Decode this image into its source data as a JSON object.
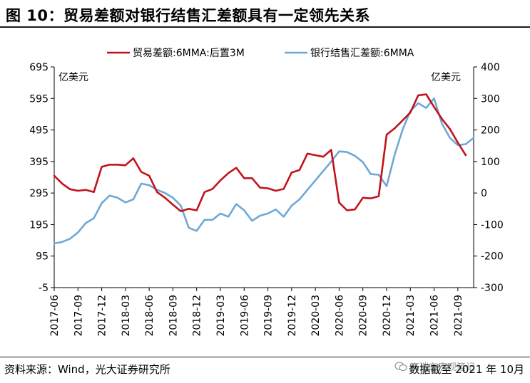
{
  "header": {
    "title": "图 10：贸易差额对银行结售汇差额具有一定领先关系"
  },
  "footer": {
    "source": "资料来源：Wind，光大证券研究所",
    "watermark": "高瑞东宏观笔记",
    "date_note": "数据截至 2021 年 10月"
  },
  "chart_data": {
    "type": "line",
    "left_unit": "亿美元",
    "right_unit": "亿美元",
    "left_axis": {
      "min": -5,
      "max": 695,
      "ticks": [
        -5,
        95,
        195,
        295,
        395,
        495,
        595,
        695
      ]
    },
    "right_axis": {
      "min": -300,
      "max": 400,
      "ticks": [
        -300,
        -200,
        -100,
        0,
        100,
        200,
        300,
        400
      ]
    },
    "x_labels": [
      "2017-06",
      "2017-09",
      "2017-12",
      "2018-03",
      "2018-06",
      "2018-09",
      "2018-12",
      "2019-03",
      "2019-06",
      "2019-09",
      "2019-12",
      "2020-03",
      "2020-06",
      "2020-09",
      "2020-12",
      "2021-03",
      "2021-06",
      "2021-09"
    ],
    "x_label_every": 3,
    "legend_position": "top-center",
    "colors": {
      "trade": "#c0141c",
      "fx": "#6fa8d6"
    },
    "series": [
      {
        "name": "贸易差额:6MMA:后置3M",
        "axis": "left",
        "color": "#c0141c",
        "values": [
          350,
          325,
          307,
          302,
          305,
          298,
          378,
          385,
          385,
          383,
          405,
          362,
          350,
          298,
          280,
          258,
          237,
          245,
          240,
          298,
          308,
          335,
          358,
          375,
          342,
          342,
          312,
          310,
          302,
          308,
          360,
          368,
          420,
          415,
          410,
          432,
          265,
          240,
          243,
          280,
          278,
          285,
          480,
          500,
          525,
          550,
          605,
          608,
          568,
          530,
          498,
          455,
          415
        ]
      },
      {
        "name": "银行结售汇差额:6MMA",
        "axis": "right",
        "color": "#6fa8d6",
        "values": [
          -160,
          -155,
          -145,
          -125,
          -95,
          -80,
          -32,
          -8,
          -15,
          -30,
          -20,
          30,
          25,
          10,
          0,
          -15,
          -40,
          -110,
          -120,
          -85,
          -85,
          -65,
          -75,
          -35,
          -55,
          -88,
          -72,
          -65,
          -52,
          -75,
          -40,
          -20,
          10,
          40,
          70,
          100,
          132,
          130,
          118,
          98,
          60,
          58,
          22,
          120,
          200,
          260,
          285,
          270,
          300,
          220,
          175,
          152,
          155,
          175
        ]
      }
    ]
  }
}
